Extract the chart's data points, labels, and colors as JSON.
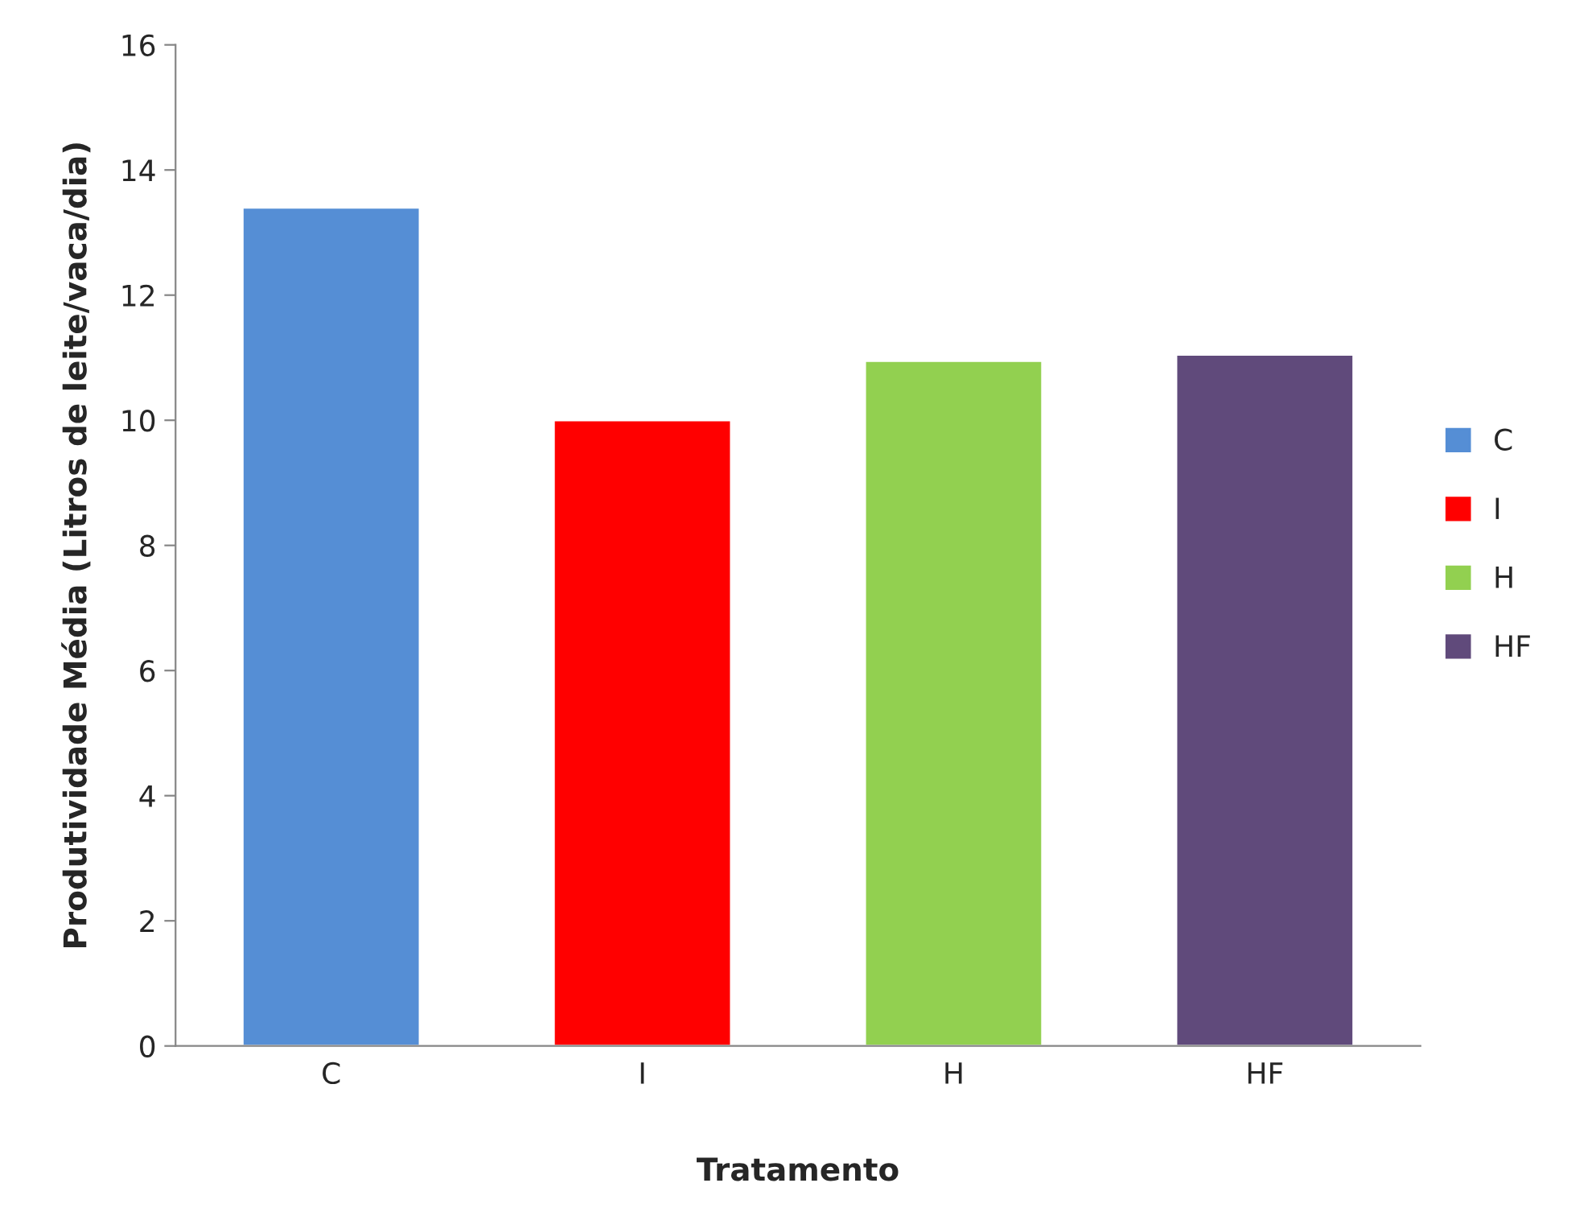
{
  "chart_data": {
    "type": "bar",
    "xlabel": "Tratamento",
    "ylabel": "Produtividade Média (Litros de leite/vaca/dia)",
    "categories": [
      "C",
      "I",
      "H",
      "HF"
    ],
    "series": [
      {
        "name": "C",
        "color": "#558ed5",
        "values": [
          13.4,
          null,
          null,
          null
        ]
      },
      {
        "name": "I",
        "color": "#ff0000",
        "values": [
          null,
          10.0,
          null,
          null
        ]
      },
      {
        "name": "H",
        "color": "#92d050",
        "values": [
          null,
          null,
          10.95,
          null
        ]
      },
      {
        "name": "HF",
        "color": "#604a7b",
        "values": [
          null,
          null,
          null,
          11.05
        ]
      }
    ],
    "ylim": [
      0,
      16
    ],
    "yticks": [
      0,
      2,
      4,
      6,
      8,
      10,
      12,
      14,
      16
    ],
    "grid": false,
    "legend": "right"
  }
}
